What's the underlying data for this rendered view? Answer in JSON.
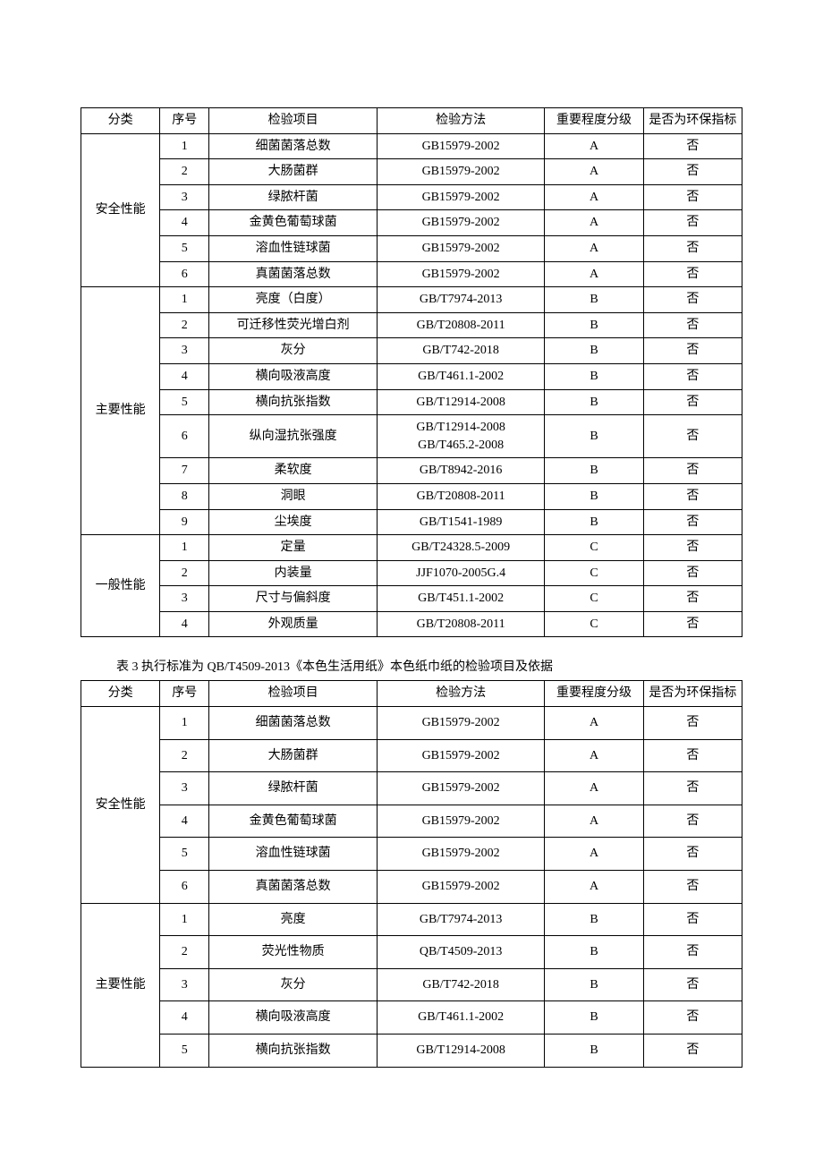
{
  "table1": {
    "headers": {
      "category": "分类",
      "index": "序号",
      "item": "检验项目",
      "method": "检验方法",
      "level": "重要程度分级",
      "env": "是否为环保指标"
    },
    "groups": [
      {
        "category": "安全性能",
        "rows": [
          {
            "idx": "1",
            "item": "细菌菌落总数",
            "method": "GB15979-2002",
            "level": "A",
            "env": "否"
          },
          {
            "idx": "2",
            "item": "大肠菌群",
            "method": "GB15979-2002",
            "level": "A",
            "env": "否"
          },
          {
            "idx": "3",
            "item": "绿脓杆菌",
            "method": "GB15979-2002",
            "level": "A",
            "env": "否"
          },
          {
            "idx": "4",
            "item": "金黄色葡萄球菌",
            "method": "GB15979-2002",
            "level": "A",
            "env": "否"
          },
          {
            "idx": "5",
            "item": "溶血性链球菌",
            "method": "GB15979-2002",
            "level": "A",
            "env": "否"
          },
          {
            "idx": "6",
            "item": "真菌菌落总数",
            "method": "GB15979-2002",
            "level": "A",
            "env": "否"
          }
        ]
      },
      {
        "category": "主要性能",
        "rows": [
          {
            "idx": "1",
            "item": "亮度（白度）",
            "method": "GB/T7974-2013",
            "level": "B",
            "env": "否"
          },
          {
            "idx": "2",
            "item": "可迁移性荧光增白剂",
            "method": "GB/T20808-2011",
            "level": "B",
            "env": "否"
          },
          {
            "idx": "3",
            "item": "灰分",
            "method": "GB/T742-2018",
            "level": "B",
            "env": "否"
          },
          {
            "idx": "4",
            "item": "横向吸液高度",
            "method": "GB/T461.1-2002",
            "level": "B",
            "env": "否"
          },
          {
            "idx": "5",
            "item": "横向抗张指数",
            "method": "GB/T12914-2008",
            "level": "B",
            "env": "否"
          },
          {
            "idx": "6",
            "item": "纵向湿抗张强度",
            "method": "GB/T12914-2008\nGB/T465.2-2008",
            "level": "B",
            "env": "否"
          },
          {
            "idx": "7",
            "item": "柔软度",
            "method": "GB/T8942-2016",
            "level": "B",
            "env": "否"
          },
          {
            "idx": "8",
            "item": "洞眼",
            "method": "GB/T20808-2011",
            "level": "B",
            "env": "否"
          },
          {
            "idx": "9",
            "item": "尘埃度",
            "method": "GB/T1541-1989",
            "level": "B",
            "env": "否"
          }
        ]
      },
      {
        "category": "一般性能",
        "rows": [
          {
            "idx": "1",
            "item": "定量",
            "method": "GB/T24328.5-2009",
            "level": "C",
            "env": "否"
          },
          {
            "idx": "2",
            "item": "内装量",
            "method": "JJF1070-2005G.4",
            "level": "C",
            "env": "否"
          },
          {
            "idx": "3",
            "item": "尺寸与偏斜度",
            "method": "GB/T451.1-2002",
            "level": "C",
            "env": "否"
          },
          {
            "idx": "4",
            "item": "外观质量",
            "method": "GB/T20808-2011",
            "level": "C",
            "env": "否"
          }
        ]
      }
    ]
  },
  "caption2": "表 3 执行标准为 QB/T4509-2013《本色生活用纸》本色纸巾纸的检验项目及依据",
  "table2": {
    "headers": {
      "category": "分类",
      "index": "序号",
      "item": "检验项目",
      "method": "检验方法",
      "level": "重要程度分级",
      "env": "是否为环保指标"
    },
    "groups": [
      {
        "category": "安全性能",
        "rows": [
          {
            "idx": "1",
            "item": "细菌菌落总数",
            "method": "GB15979-2002",
            "level": "A",
            "env": "否"
          },
          {
            "idx": "2",
            "item": "大肠菌群",
            "method": "GB15979-2002",
            "level": "A",
            "env": "否"
          },
          {
            "idx": "3",
            "item": "绿脓杆菌",
            "method": "GB15979-2002",
            "level": "A",
            "env": "否"
          },
          {
            "idx": "4",
            "item": "金黄色葡萄球菌",
            "method": "GB15979-2002",
            "level": "A",
            "env": "否"
          },
          {
            "idx": "5",
            "item": "溶血性链球菌",
            "method": "GB15979-2002",
            "level": "A",
            "env": "否"
          },
          {
            "idx": "6",
            "item": "真菌菌落总数",
            "method": "GB15979-2002",
            "level": "A",
            "env": "否"
          }
        ]
      },
      {
        "category": "主要性能",
        "rows": [
          {
            "idx": "1",
            "item": "亮度",
            "method": "GB/T7974-2013",
            "level": "B",
            "env": "否"
          },
          {
            "idx": "2",
            "item": "荧光性物质",
            "method": "QB/T4509-2013",
            "level": "B",
            "env": "否"
          },
          {
            "idx": "3",
            "item": "灰分",
            "method": "GB/T742-2018",
            "level": "B",
            "env": "否"
          },
          {
            "idx": "4",
            "item": "横向吸液高度",
            "method": "GB/T461.1-2002",
            "level": "B",
            "env": "否"
          },
          {
            "idx": "5",
            "item": "横向抗张指数",
            "method": "GB/T12914-2008",
            "level": "B",
            "env": "否"
          }
        ]
      }
    ]
  }
}
